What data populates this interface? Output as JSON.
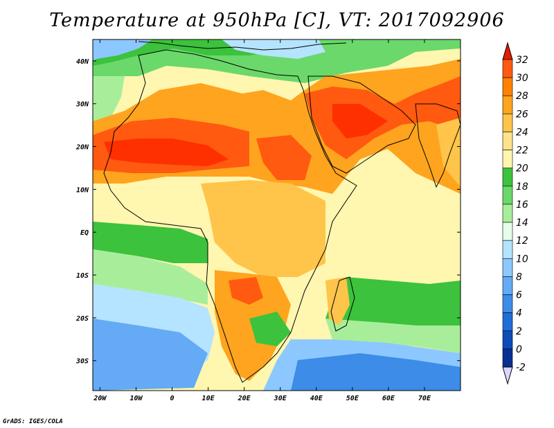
{
  "title": "Temperature at 950hPa [C], VT: 2017092906",
  "credit": "GrADS: IGES/COLA",
  "map": {
    "lon_ticks": [
      "20W",
      "10W",
      "0",
      "10E",
      "20E",
      "30E",
      "40E",
      "50E",
      "60E",
      "70E"
    ],
    "lat_ticks": [
      "40N",
      "30N",
      "20N",
      "10N",
      "EQ",
      "10S",
      "20S",
      "30S"
    ],
    "lon_range": [
      -22,
      80
    ],
    "lat_range": [
      -37,
      45
    ]
  },
  "colorbar": {
    "levels": [
      "32",
      "30",
      "28",
      "26",
      "24",
      "22",
      "20",
      "18",
      "16",
      "14",
      "12",
      "10",
      "8",
      "6",
      "4",
      "2",
      "0",
      "-2"
    ],
    "colors": [
      "#ff3000",
      "#ff5a10",
      "#ff8200",
      "#ffa41e",
      "#ffc44a",
      "#ffe38a",
      "#fff6b0",
      "#3cc23c",
      "#6ad86a",
      "#a8ee9a",
      "#e6ffea",
      "#b4e4ff",
      "#8cc8ff",
      "#64aaf5",
      "#3c8ce8",
      "#1f6ed8",
      "#0c4cb8",
      "#083090",
      "#0a1a60",
      "#dcd6ff"
    ]
  }
}
